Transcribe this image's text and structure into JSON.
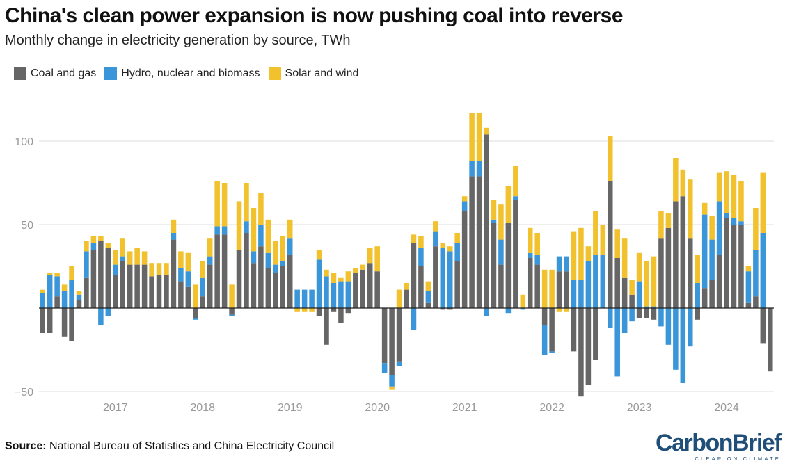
{
  "chart_data": {
    "type": "bar",
    "stacked": true,
    "title": "China's clean power expansion is now pushing coal into reverse",
    "subtitle": "Monthly change in electricity generation by source, TWh",
    "xlabel": "",
    "ylabel": "",
    "ylim": [
      -55,
      125
    ],
    "yticks": [
      -50,
      50,
      100
    ],
    "ytick_labels": [
      "−50",
      "50",
      "100"
    ],
    "x_tick_labels": [
      "2017",
      "2018",
      "2019",
      "2020",
      "2021",
      "2022",
      "2023",
      "2024"
    ],
    "legend_position": "top-left",
    "start_month": "2016-03",
    "series": [
      {
        "name": "Coal and gas",
        "color": "#666666",
        "values": [
          -15,
          -15,
          7,
          -17,
          -20,
          5,
          18,
          35,
          40,
          36,
          20,
          28,
          26,
          26,
          26,
          19,
          20,
          20,
          41,
          16,
          13,
          -6,
          7,
          26,
          44,
          44,
          -4,
          35,
          45,
          27,
          37,
          24,
          21,
          25,
          32,
          0,
          0,
          0,
          -5,
          -22,
          -2,
          -9,
          -3,
          21,
          23,
          27,
          22,
          -33,
          -40,
          -32,
          11,
          39,
          25,
          3,
          37,
          -1,
          -1,
          28,
          58,
          79,
          79,
          104,
          51,
          26,
          51,
          65,
          0,
          30,
          26,
          -10,
          -26,
          22,
          22,
          -26,
          -53,
          -46,
          -31,
          0,
          76,
          30,
          18,
          8,
          -6,
          -6,
          -7,
          42,
          48,
          64,
          67,
          42,
          -7,
          12,
          17,
          32,
          54,
          50,
          50,
          3,
          7,
          -21,
          -38
        ]
      },
      {
        "name": "Hydro, nuclear and biomass",
        "color": "#3a96d8",
        "values": [
          9,
          20,
          12,
          10,
          17,
          3,
          16,
          4,
          -10,
          -5,
          6,
          3,
          0,
          0,
          0,
          0,
          0,
          0,
          4,
          8,
          9,
          -1,
          11,
          5,
          5,
          5,
          -1,
          0,
          7,
          7,
          13,
          9,
          5,
          3,
          10,
          11,
          11,
          11,
          29,
          19,
          15,
          16,
          16,
          0,
          0,
          0,
          0,
          -6,
          -7,
          -3,
          0,
          -13,
          11,
          7,
          9,
          36,
          34,
          11,
          6,
          9,
          9,
          -5,
          2,
          15,
          -3,
          2,
          -1,
          3,
          6,
          -18,
          -1,
          9,
          9,
          17,
          17,
          28,
          32,
          32,
          -12,
          -41,
          -15,
          -8,
          16,
          1,
          1,
          -11,
          -22,
          -37,
          -45,
          -23,
          15,
          44,
          24,
          32,
          3,
          4,
          2,
          19,
          28,
          45
        ]
      },
      {
        "name": "Solar and wind",
        "color": "#f2c12e",
        "values": [
          2,
          1,
          2,
          4,
          8,
          2,
          6,
          4,
          3,
          3,
          9,
          11,
          8,
          10,
          8,
          8,
          7,
          7,
          8,
          10,
          11,
          14,
          10,
          11,
          27,
          26,
          14,
          29,
          23,
          26,
          19,
          20,
          14,
          15,
          11,
          -2,
          -2,
          -2,
          6,
          4,
          6,
          2,
          6,
          3,
          3,
          9,
          15,
          0,
          -2,
          11,
          4,
          5,
          7,
          6,
          6,
          3,
          3,
          6,
          3,
          29,
          29,
          4,
          12,
          21,
          22,
          18,
          8,
          15,
          13,
          23,
          23,
          -2,
          -2,
          29,
          31,
          9,
          26,
          18,
          27,
          17,
          24,
          9,
          17,
          27,
          30,
          16,
          9,
          26,
          16,
          35,
          17,
          7,
          14,
          17,
          25,
          26,
          24,
          3,
          25,
          36
        ]
      }
    ]
  },
  "source": {
    "label": "Source:",
    "text": "National Bureau of Statistics and China Electricity Council"
  },
  "logo": {
    "name": "CarbonBrief",
    "tagline": "CLEAR ON CLIMATE"
  }
}
